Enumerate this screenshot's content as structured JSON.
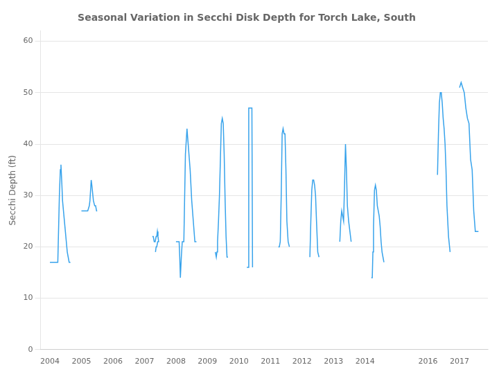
{
  "chart_data": {
    "type": "line",
    "title": "Seasonal Variation in Secchi Disk Depth for Torch Lake, South",
    "ylabel": "Secchi Depth (ft)",
    "xlim": [
      2003.7,
      2017.9
    ],
    "xticks": [
      2004,
      2005,
      2006,
      2007,
      2008,
      2009,
      2010,
      2011,
      2012,
      2013,
      2014,
      2016,
      2017
    ],
    "ylim": [
      0,
      62
    ],
    "yticks": [
      0,
      10,
      20,
      30,
      40,
      50,
      60
    ],
    "grid": true,
    "x": [
      2004.0,
      2004.05,
      2004.1,
      2004.15,
      2004.2,
      2004.25,
      2004.3,
      2004.33,
      2004.35,
      2004.38,
      2004.4,
      2004.43,
      2004.46,
      2004.49,
      2004.52,
      2004.55,
      2004.58,
      2004.61,
      2004.65,
      null,
      2005.0,
      2005.05,
      2005.1,
      2005.15,
      2005.2,
      2005.25,
      2005.27,
      2005.29,
      2005.31,
      2005.33,
      2005.38,
      2005.42,
      2005.45,
      2005.48,
      2005.5,
      null,
      2007.25,
      2007.28,
      2007.31,
      2007.34,
      2007.37,
      2007.39,
      2007.41,
      2007.43,
      2007.45,
      2007.42,
      2007.39,
      2007.37,
      2007.35,
      null,
      2008.0,
      2008.05,
      2008.1,
      2008.12,
      2008.14,
      2008.17,
      2008.2,
      2008.25,
      2008.3,
      2008.35,
      2008.4,
      2008.45,
      2008.5,
      2008.55,
      2008.6,
      2008.65,
      null,
      2009.25,
      2009.28,
      2009.3,
      2009.32,
      2009.35,
      2009.38,
      2009.41,
      2009.44,
      2009.47,
      2009.5,
      2009.53,
      2009.56,
      2009.59,
      2009.62,
      2009.65,
      null,
      2010.25,
      2010.27,
      2010.29,
      2010.31,
      2010.33,
      2010.35,
      2010.37,
      2010.39,
      2010.41,
      2010.43,
      null,
      2011.25,
      2011.28,
      2011.31,
      2011.34,
      2011.37,
      2011.4,
      2011.43,
      2011.46,
      2011.49,
      2011.52,
      2011.56,
      2011.6,
      null,
      2012.25,
      2012.28,
      2012.31,
      2012.34,
      2012.37,
      2012.4,
      2012.43,
      2012.46,
      2012.5,
      2012.54,
      null,
      2013.2,
      2013.23,
      2013.26,
      2013.29,
      2013.32,
      2013.35,
      2013.38,
      2013.41,
      2013.44,
      2013.48,
      2013.52,
      2013.56,
      null,
      2014.2,
      2014.23,
      2014.25,
      2014.27,
      2014.3,
      2014.33,
      2014.36,
      2014.39,
      2014.42,
      2014.45,
      2014.48,
      2014.51,
      2014.54,
      2014.57,
      2014.6,
      null,
      2016.3,
      2016.33,
      2016.36,
      2016.39,
      2016.42,
      2016.45,
      2016.48,
      2016.51,
      2016.54,
      2016.57,
      2016.6,
      2016.65,
      2016.7,
      null,
      2017.0,
      2017.05,
      2017.1,
      2017.15,
      2017.2,
      2017.25,
      2017.3,
      2017.35,
      2017.4,
      2017.45,
      2017.5,
      2017.55,
      2017.6
    ],
    "values": [
      17,
      17,
      17,
      17,
      17,
      17,
      30,
      35,
      36,
      32,
      29,
      27,
      25,
      23,
      21,
      19,
      18,
      17,
      17,
      null,
      27,
      27,
      27,
      27,
      27,
      28,
      29,
      31,
      33,
      32,
      29,
      28,
      28,
      27,
      27,
      null,
      22,
      22,
      21,
      21,
      22,
      22,
      23,
      22,
      21,
      21,
      20,
      20,
      19,
      null,
      21,
      21,
      21,
      18,
      14,
      18,
      21,
      21,
      38,
      43,
      39,
      35,
      29,
      25,
      21,
      21,
      null,
      19,
      18,
      19,
      21,
      25,
      30,
      37,
      44,
      45,
      44,
      38,
      29,
      22,
      18,
      18,
      null,
      16,
      16,
      16,
      47,
      47,
      47,
      47,
      47,
      47,
      16,
      null,
      20,
      20,
      21,
      30,
      42,
      43,
      42,
      42,
      35,
      25,
      21,
      20,
      null,
      18,
      25,
      31,
      33,
      33,
      32,
      30,
      25,
      19,
      18,
      null,
      21,
      25,
      27,
      26,
      25,
      32,
      40,
      35,
      28,
      25,
      23,
      21,
      null,
      14,
      14,
      19,
      24,
      31,
      32,
      31,
      28,
      27,
      26,
      24,
      21,
      19,
      18,
      17,
      null,
      34,
      42,
      48,
      50,
      50,
      48,
      45,
      43,
      40,
      35,
      28,
      22,
      19,
      null,
      51,
      52,
      51,
      50,
      47,
      45,
      44,
      37,
      35,
      27,
      23,
      23,
      23
    ]
  }
}
